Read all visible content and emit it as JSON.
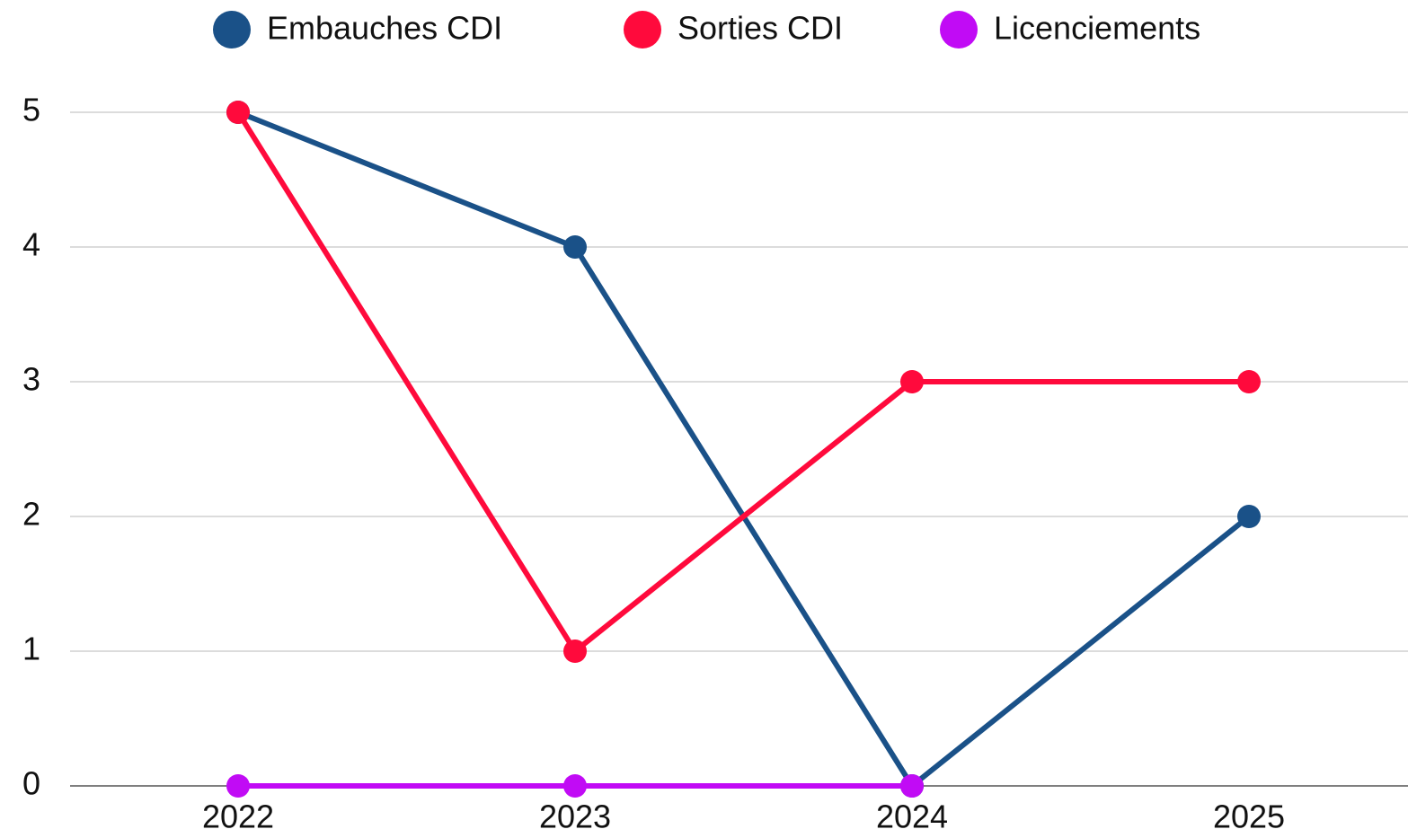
{
  "chart_data": {
    "type": "line",
    "categories": [
      "2022",
      "2023",
      "2024",
      "2025"
    ],
    "series": [
      {
        "name": "Embauches CDI",
        "color": "#1a5188",
        "values": [
          5,
          4,
          0,
          2
        ]
      },
      {
        "name": "Sorties CDI",
        "color": "#ff0a3c",
        "values": [
          5,
          1,
          3,
          3
        ]
      },
      {
        "name": "Licenciements",
        "color": "#c10bf5",
        "values": [
          0,
          0,
          0,
          null
        ]
      }
    ],
    "ylim": [
      0,
      5
    ],
    "yticks": [
      0,
      1,
      2,
      3,
      4,
      5
    ],
    "grid": true,
    "legend": "top"
  }
}
